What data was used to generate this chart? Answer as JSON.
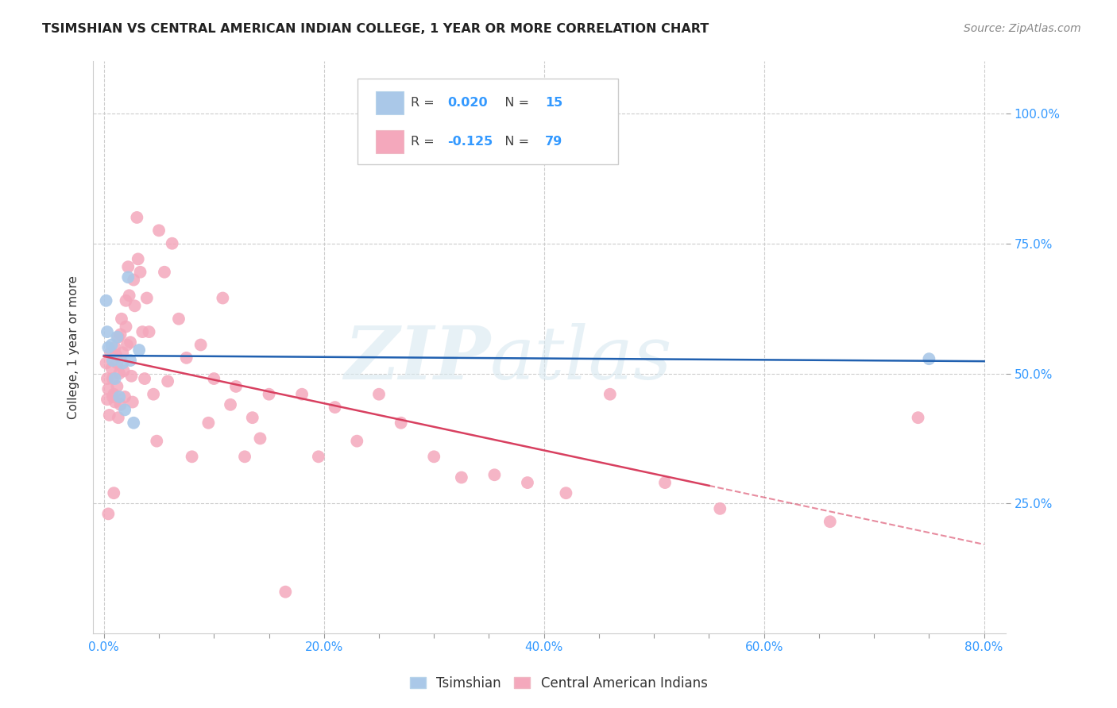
{
  "title": "TSIMSHIAN VS CENTRAL AMERICAN INDIAN COLLEGE, 1 YEAR OR MORE CORRELATION CHART",
  "source": "Source: ZipAtlas.com",
  "ylabel": "College, 1 year or more",
  "x_tick_labels": [
    "0.0%",
    "",
    "",
    "",
    "20.0%",
    "",
    "",
    "",
    "40.0%",
    "",
    "",
    "",
    "60.0%",
    "",
    "",
    "",
    "80.0%"
  ],
  "x_tick_values": [
    0.0,
    0.05,
    0.1,
    0.15,
    0.2,
    0.25,
    0.3,
    0.35,
    0.4,
    0.45,
    0.5,
    0.55,
    0.6,
    0.65,
    0.7,
    0.75,
    0.8
  ],
  "y_tick_labels": [
    "25.0%",
    "50.0%",
    "75.0%",
    "100.0%"
  ],
  "y_tick_values": [
    0.25,
    0.5,
    0.75,
    1.0
  ],
  "xlim": [
    -0.01,
    0.82
  ],
  "ylim": [
    0.0,
    1.1
  ],
  "legend_labels": [
    "Tsimshian",
    "Central American Indians"
  ],
  "R_tsimshian": 0.02,
  "N_tsimshian": 15,
  "R_central": -0.125,
  "N_central": 79,
  "tsimshian_color": "#aac8e8",
  "tsimshian_line_color": "#2060b0",
  "central_color": "#f4a8bc",
  "central_line_color": "#d84060",
  "tsimshian_x": [
    0.002,
    0.003,
    0.004,
    0.007,
    0.008,
    0.01,
    0.012,
    0.014,
    0.017,
    0.019,
    0.022,
    0.024,
    0.027,
    0.032,
    0.75
  ],
  "tsimshian_y": [
    0.64,
    0.58,
    0.55,
    0.555,
    0.525,
    0.49,
    0.57,
    0.455,
    0.52,
    0.43,
    0.685,
    0.525,
    0.405,
    0.545,
    0.528
  ],
  "central_x": [
    0.002,
    0.003,
    0.003,
    0.004,
    0.004,
    0.005,
    0.006,
    0.007,
    0.008,
    0.008,
    0.009,
    0.009,
    0.01,
    0.01,
    0.011,
    0.012,
    0.012,
    0.013,
    0.013,
    0.014,
    0.015,
    0.015,
    0.016,
    0.017,
    0.018,
    0.019,
    0.02,
    0.02,
    0.021,
    0.022,
    0.023,
    0.024,
    0.025,
    0.026,
    0.027,
    0.028,
    0.03,
    0.031,
    0.033,
    0.035,
    0.037,
    0.039,
    0.041,
    0.045,
    0.048,
    0.05,
    0.055,
    0.058,
    0.062,
    0.068,
    0.075,
    0.08,
    0.088,
    0.095,
    0.1,
    0.108,
    0.115,
    0.12,
    0.128,
    0.135,
    0.142,
    0.15,
    0.165,
    0.18,
    0.195,
    0.21,
    0.23,
    0.25,
    0.27,
    0.3,
    0.325,
    0.355,
    0.385,
    0.42,
    0.46,
    0.51,
    0.56,
    0.66,
    0.74
  ],
  "central_y": [
    0.52,
    0.49,
    0.45,
    0.47,
    0.23,
    0.42,
    0.54,
    0.51,
    0.49,
    0.455,
    0.46,
    0.27,
    0.55,
    0.445,
    0.535,
    0.52,
    0.475,
    0.415,
    0.57,
    0.5,
    0.575,
    0.44,
    0.605,
    0.54,
    0.505,
    0.455,
    0.64,
    0.59,
    0.555,
    0.705,
    0.65,
    0.56,
    0.495,
    0.445,
    0.68,
    0.63,
    0.8,
    0.72,
    0.695,
    0.58,
    0.49,
    0.645,
    0.58,
    0.46,
    0.37,
    0.775,
    0.695,
    0.485,
    0.75,
    0.605,
    0.53,
    0.34,
    0.555,
    0.405,
    0.49,
    0.645,
    0.44,
    0.475,
    0.34,
    0.415,
    0.375,
    0.46,
    0.08,
    0.46,
    0.34,
    0.435,
    0.37,
    0.46,
    0.405,
    0.34,
    0.3,
    0.305,
    0.29,
    0.27,
    0.46,
    0.29,
    0.24,
    0.215,
    0.415
  ]
}
